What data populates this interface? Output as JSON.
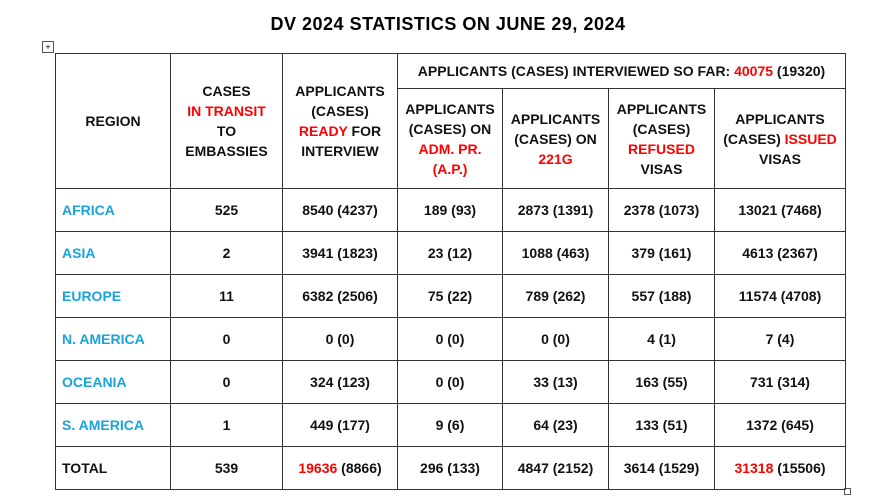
{
  "title": "DV 2024 STATISTICS ON JUNE 29, 2024",
  "table": {
    "header": {
      "region": [
        {
          "text": "REGION"
        }
      ],
      "in_transit": [
        {
          "text": "CASES"
        },
        {
          "text": "IN TRANSIT",
          "color": "#ff0000"
        },
        {
          "text": "TO EMBASSIES"
        }
      ],
      "ready": [
        {
          "text": "APPLICANTS (CASES) "
        },
        {
          "text": "READY",
          "color": "#ff0000"
        },
        {
          "text": " FOR INTERVIEW"
        }
      ],
      "interviewed": [
        {
          "text": "APPLICANTS (CASES) INTERVIEWED SO FAR: "
        },
        {
          "text": "40075",
          "color": "#ff0000"
        },
        {
          "text": " (19320)"
        }
      ],
      "sub": [
        [
          {
            "text": "APPLICANTS (CASES) ON "
          },
          {
            "text": "ADM. PR. (A.P.)",
            "color": "#ff0000"
          }
        ],
        [
          {
            "text": "APPLICANTS (CASES) ON "
          },
          {
            "text": "221G",
            "color": "#ff0000"
          }
        ],
        [
          {
            "text": "APPLICANTS (CASES) "
          },
          {
            "text": "REFUSED",
            "color": "#ff0000"
          },
          {
            "text": " VISAS"
          }
        ],
        [
          {
            "text": "APPLICANTS (CASES) "
          },
          {
            "text": "ISSUED",
            "color": "#ff0000"
          },
          {
            "text": " VISAS"
          }
        ]
      ]
    },
    "rows": [
      {
        "region": "AFRICA",
        "color": "#1aa3dd",
        "cells": [
          "525",
          "8540 (4237)",
          "189 (93)",
          "2873 (1391)",
          "2378 (1073)",
          "13021 (7468)"
        ]
      },
      {
        "region": "ASIA",
        "color": "#1aa3dd",
        "cells": [
          "2",
          "3941 (1823)",
          "23 (12)",
          "1088 (463)",
          "379 (161)",
          "4613 (2367)"
        ]
      },
      {
        "region": "EUROPE",
        "color": "#1aa3dd",
        "cells": [
          "11",
          "6382 (2506)",
          "75 (22)",
          "789 (262)",
          "557 (188)",
          "11574 (4708)"
        ]
      },
      {
        "region": "N. AMERICA",
        "color": "#1aa3dd",
        "cells": [
          "0",
          "0 (0)",
          "0 (0)",
          "0 (0)",
          "4 (1)",
          "7 (4)"
        ]
      },
      {
        "region": "OCEANIA",
        "color": "#1aa3dd",
        "cells": [
          "0",
          "324 (123)",
          "0 (0)",
          "33 (13)",
          "163 (55)",
          "731 (314)"
        ]
      },
      {
        "region": "S. AMERICA",
        "color": "#1aa3dd",
        "cells": [
          "1",
          "449 (177)",
          "9 (6)",
          "64 (23)",
          "133 (51)",
          "1372 (645)"
        ]
      },
      {
        "region": "TOTAL",
        "cells": [
          "539",
          [
            {
              "text": "19636",
              "color": "#ff0000"
            },
            {
              "text": " (8866)"
            }
          ],
          "296 (133)",
          "4847 (2152)",
          "3614 (1529)",
          [
            {
              "text": "31318",
              "color": "#ff0000"
            },
            {
              "text": " (15506)"
            }
          ]
        ]
      }
    ]
  }
}
